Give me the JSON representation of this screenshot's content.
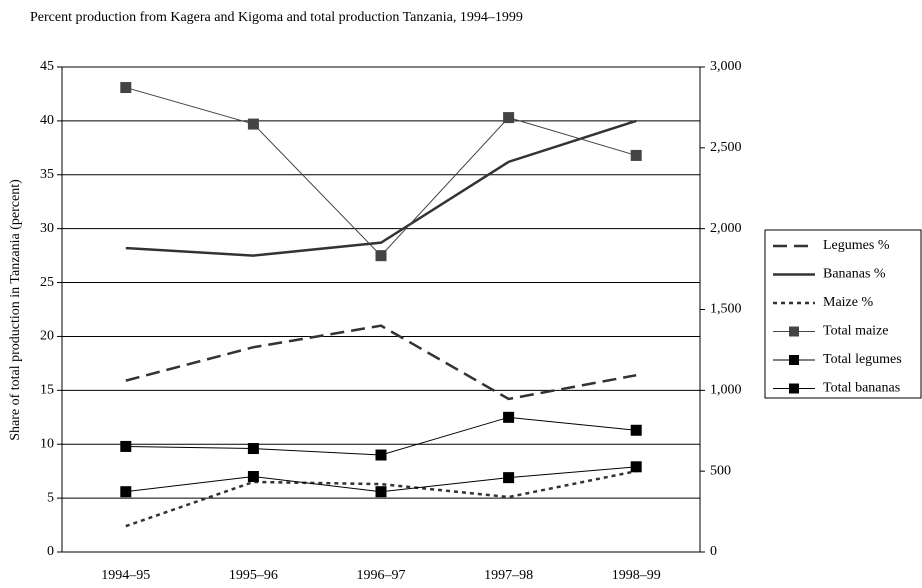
{
  "chart_data": {
    "type": "line",
    "title": "Percent production from Kagera and Kigoma and total production Tanzania, 1994–1999",
    "y_label": "Share of total production in Tanzania (percent)",
    "categories": [
      "1994–95",
      "1995–96",
      "1996–97",
      "1997–98",
      "1998–99"
    ],
    "ylim": [
      0,
      45
    ],
    "yticks": [
      0,
      5,
      10,
      15,
      20,
      25,
      30,
      35,
      40,
      45
    ],
    "y2lim": [
      0,
      3000
    ],
    "y2ticks": [
      0,
      500,
      {
        "value": 1000,
        "label": "1,000"
      },
      {
        "value": 1500,
        "label": "1,500"
      },
      {
        "value": 2000,
        "label": "2,000"
      },
      {
        "value": 2500,
        "label": "2,500"
      },
      {
        "value": 3000,
        "label": "3,000"
      }
    ],
    "grid": true,
    "legend": "right",
    "series": [
      {
        "name": "Legumes %",
        "color": "#333333",
        "style": "dashed",
        "values": [
          15.9,
          19.0,
          21.0,
          14.2,
          16.4
        ]
      },
      {
        "name": "Bananas %",
        "color": "#333333",
        "style": "thick",
        "values": [
          28.2,
          27.5,
          28.7,
          36.2,
          40.0
        ]
      },
      {
        "name": "Maize %",
        "color": "#333333",
        "style": "dotted",
        "values": [
          2.4,
          6.5,
          6.3,
          5.1,
          7.5
        ]
      },
      {
        "name": "Total maize",
        "color": "#444444",
        "style": "marker",
        "axis": "y2",
        "values": [
          2873,
          2647,
          1833,
          2687,
          2453
        ]
      },
      {
        "name": "Total legumes",
        "color": "#000000",
        "style": "marker",
        "axis": "y2",
        "values": [
          653,
          640,
          600,
          833,
          753
        ]
      },
      {
        "name": "Total bananas",
        "color": "#000000",
        "style": "marker",
        "axis": "y2",
        "values": [
          373,
          467,
          373,
          460,
          527
        ]
      }
    ]
  }
}
